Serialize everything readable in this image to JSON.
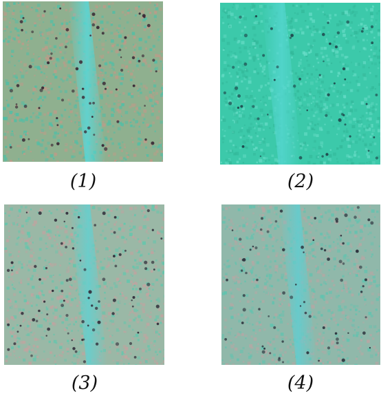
{
  "panels": [
    {
      "caption": "(1)",
      "colors": {
        "base": "#8fb08f",
        "streak": "#5ad7d7",
        "dot": "#3a2a36",
        "noise_a": "#c09a88",
        "noise_b": "#4cc0a8"
      }
    },
    {
      "caption": "(2)",
      "colors": {
        "base": "#3cc9aa",
        "streak": "#54d6cf",
        "dot": "#1f4a4e",
        "noise_a": "#33b89a",
        "noise_b": "#66dcc6"
      }
    },
    {
      "caption": "(3)",
      "colors": {
        "base": "#9ab8a6",
        "streak": "#64d0d0",
        "dot": "#33303c",
        "noise_a": "#c4a2a0",
        "noise_b": "#5ec8ae"
      }
    },
    {
      "caption": "(4)",
      "colors": {
        "base": "#90b8aa",
        "streak": "#62cdd0",
        "dot": "#2f3640",
        "noise_a": "#b8a6a4",
        "noise_b": "#5ec4b0"
      }
    }
  ]
}
